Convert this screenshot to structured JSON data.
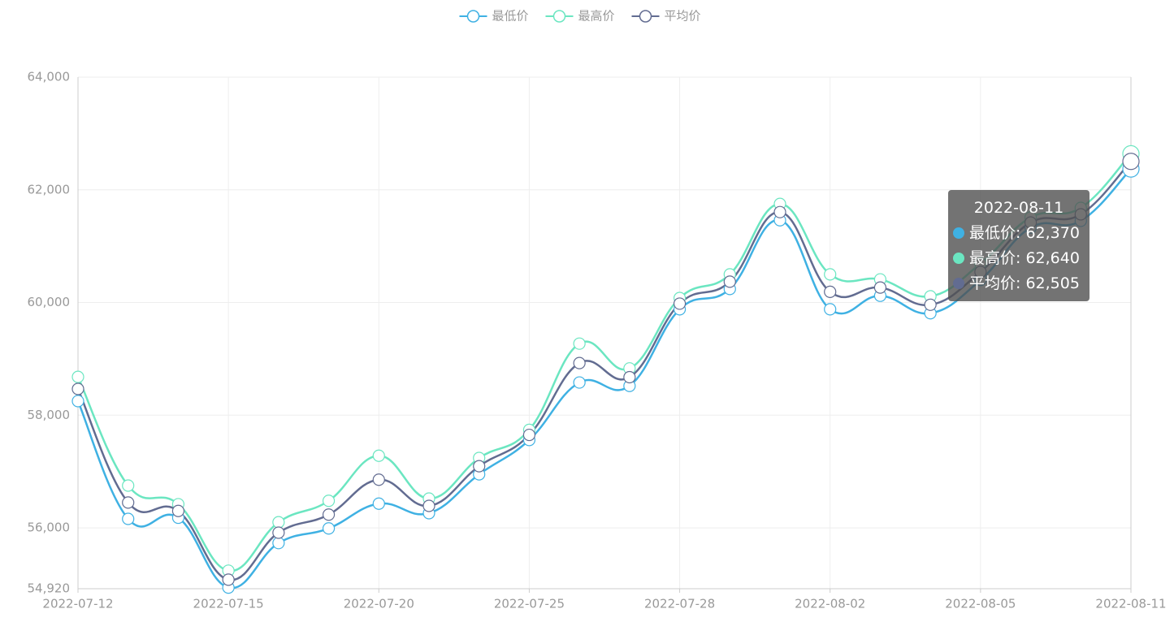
{
  "chart_data": {
    "type": "line",
    "categories": [
      "2022-07-12",
      null,
      null,
      "2022-07-15",
      null,
      null,
      "2022-07-20",
      null,
      null,
      "2022-07-25",
      null,
      null,
      "2022-07-28",
      null,
      null,
      "2022-08-02",
      null,
      null,
      "2022-08-05",
      null,
      null,
      "2022-08-11"
    ],
    "series": [
      {
        "name": "最低价",
        "color": "#3fb1e3",
        "values": [
          58250,
          56160,
          56180,
          54940,
          55730,
          55990,
          56430,
          56260,
          56950,
          57560,
          58580,
          58520,
          59880,
          60240,
          61460,
          59880,
          60120,
          59810,
          60400,
          61330,
          61450,
          62370
        ]
      },
      {
        "name": "最高价",
        "color": "#6be6c1",
        "values": [
          58680,
          56750,
          56420,
          55240,
          56100,
          56480,
          57280,
          56520,
          57240,
          57740,
          59270,
          58830,
          60080,
          60500,
          61750,
          60500,
          60410,
          60110,
          60690,
          61510,
          61680,
          62640
        ]
      },
      {
        "name": "平均价",
        "color": "#626c91",
        "values": [
          58465,
          56450,
          56300,
          55080,
          55915,
          56235,
          56855,
          56390,
          57095,
          57650,
          58925,
          58675,
          59980,
          60370,
          61605,
          60190,
          60265,
          59960,
          60545,
          61420,
          61565,
          62505
        ]
      }
    ],
    "ylim": [
      54920,
      64000
    ],
    "yticks": [
      {
        "value": 54920,
        "label": "54,920"
      },
      {
        "value": 56000,
        "label": "56,000"
      },
      {
        "value": 58000,
        "label": "58,000"
      },
      {
        "value": 60000,
        "label": "60,000"
      },
      {
        "value": 62000,
        "label": "62,000"
      },
      {
        "value": 64000,
        "label": "64,000"
      }
    ],
    "grid": true,
    "legend": "top",
    "tooltip": {
      "values": [
        "62,370",
        "62,640",
        "62,505"
      ]
    }
  }
}
